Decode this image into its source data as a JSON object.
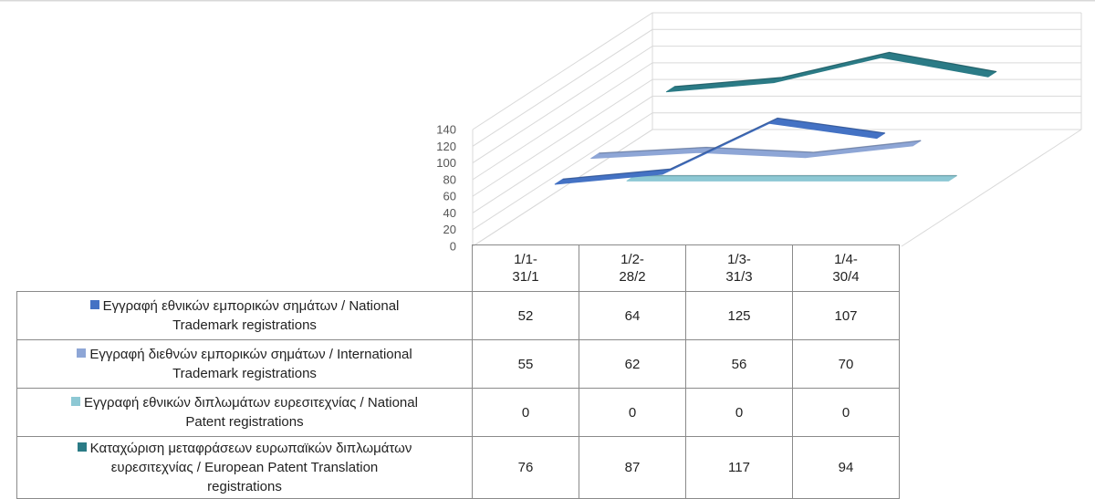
{
  "chart_data": {
    "type": "line",
    "subtype": "3d-line",
    "categories": [
      "1/1-31/1",
      "1/2-28/2",
      "1/3-31/3",
      "1/4-30/4"
    ],
    "category_lines": [
      [
        "1/1-",
        "31/1"
      ],
      [
        "1/2-",
        "28/2"
      ],
      [
        "1/3-",
        "31/3"
      ],
      [
        "1/4-",
        "30/4"
      ]
    ],
    "ylim": [
      0,
      140
    ],
    "y_ticks": [
      "0",
      "20",
      "40",
      "60",
      "80",
      "100",
      "120",
      "140"
    ],
    "grid": true,
    "legend": "data-table",
    "series": [
      {
        "name": "Εγγραφή εθνικών εμπορικών σημάτων / National Trademark registrations",
        "name_lines": [
          "Εγγραφή εθνικών εμπορικών σημάτων / National",
          "Trademark registrations"
        ],
        "values": [
          52,
          64,
          125,
          107
        ],
        "color": "#4472C4"
      },
      {
        "name": "Εγγραφή διεθνών εμπορικών σημάτων / International Trademark registrations",
        "name_lines": [
          "Εγγραφή διεθνών εμπορικών σημάτων / International",
          "Trademark registrations"
        ],
        "values": [
          55,
          62,
          56,
          70
        ],
        "color": "#8EA6D6"
      },
      {
        "name": "Εγγραφή εθνικών διπλωμάτων ευρεσιτεχνίας / National Patent registrations",
        "name_lines": [
          "Εγγραφή εθνικών διπλωμάτων ευρεσιτεχνίας / National",
          "Patent registrations"
        ],
        "values": [
          0,
          0,
          0,
          0
        ],
        "color": "#8DC8D4"
      },
      {
        "name": "Καταχώριση μεταφράσεων ευρωπαϊκών διπλωμάτων ευρεσιτεχνίας / European Patent Translation registrations",
        "name_lines": [
          "Καταχώριση μεταφράσεων ευρωπαϊκών διπλωμάτων",
          "ευρεσιτεχνίας / European Patent Translation",
          "registrations"
        ],
        "values": [
          76,
          87,
          117,
          94
        ],
        "color": "#2B7B86"
      }
    ],
    "hidden_series_color": "#B7A6CC"
  }
}
